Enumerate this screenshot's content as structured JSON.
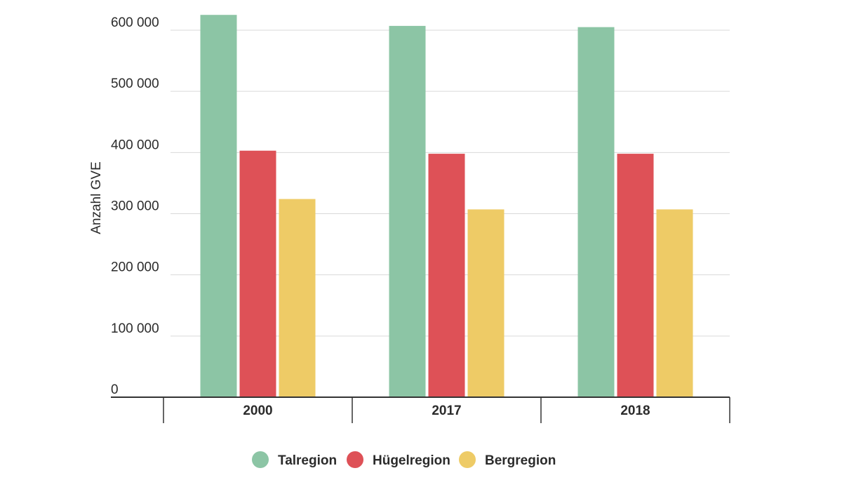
{
  "chart_data": {
    "type": "bar",
    "categories": [
      "2000",
      "2017",
      "2018"
    ],
    "series": [
      {
        "name": "Talregion",
        "color": "#8cc5a5",
        "values": [
          625000,
          607000,
          605000
        ]
      },
      {
        "name": "Hügelregion",
        "color": "#de5157",
        "values": [
          403000,
          398000,
          398000
        ]
      },
      {
        "name": "Bergregion",
        "color": "#eecb66",
        "values": [
          324000,
          307000,
          307000
        ]
      }
    ],
    "yticks": [
      {
        "value": 0,
        "label": "0"
      },
      {
        "value": 100000,
        "label": "100 000"
      },
      {
        "value": 200000,
        "label": "200 000"
      },
      {
        "value": 300000,
        "label": "300 000"
      },
      {
        "value": 400000,
        "label": "400 000"
      },
      {
        "value": 500000,
        "label": "500 000"
      },
      {
        "value": 600000,
        "label": "600 000"
      }
    ],
    "ylabel": "Anzahl GVE",
    "xlabel": "",
    "ylim": [
      0,
      600000
    ],
    "grid": true,
    "legend": "bottom-center"
  }
}
